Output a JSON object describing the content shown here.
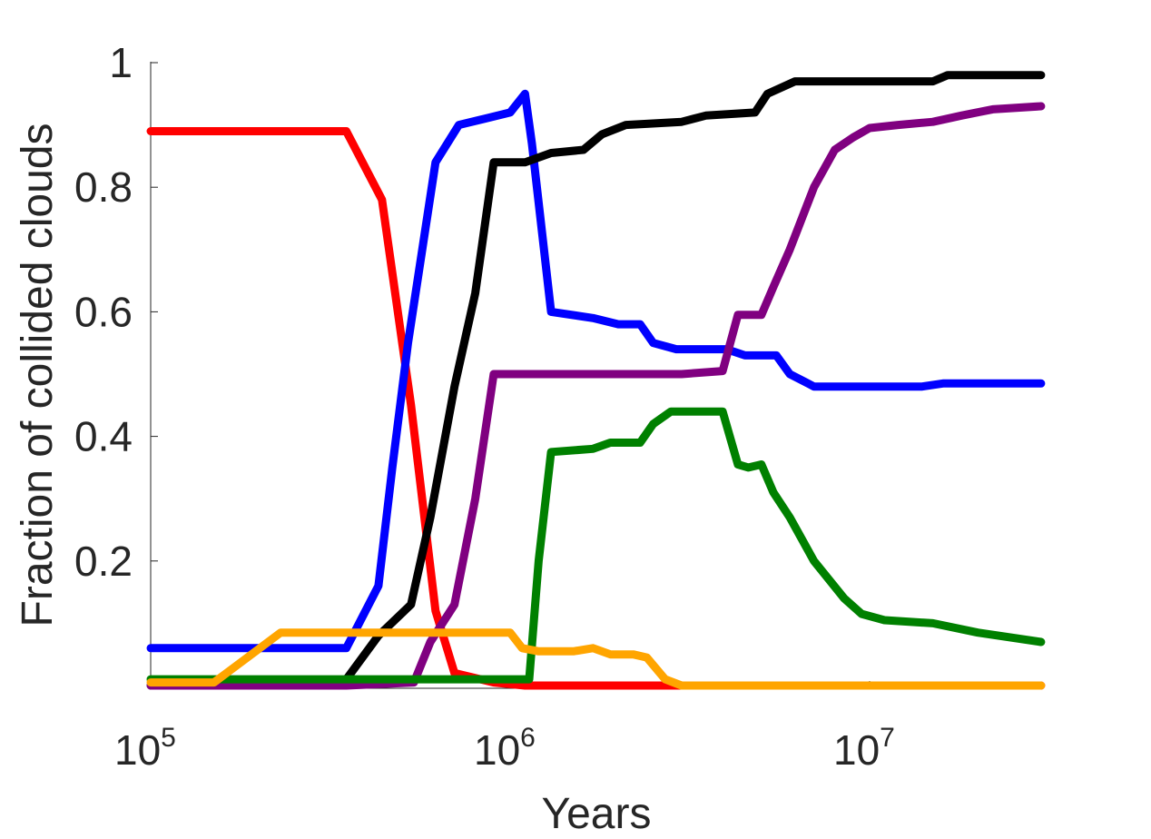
{
  "chart_data": {
    "type": "line",
    "xlabel": "Years",
    "ylabel": "Fraction of collided clouds",
    "x_scale": "log",
    "xlim": [
      100000,
      30000000
    ],
    "ylim": [
      0,
      1
    ],
    "x_ticks": [
      {
        "base": "10",
        "exp": "5",
        "value": 100000
      },
      {
        "base": "10",
        "exp": "6",
        "value": 1000000
      },
      {
        "base": "10",
        "exp": "7",
        "value": 10000000
      }
    ],
    "y_ticks": [
      {
        "label": "0.2",
        "value": 0.2
      },
      {
        "label": "0.4",
        "value": 0.4
      },
      {
        "label": "0.6",
        "value": 0.6
      },
      {
        "label": "0.8",
        "value": 0.8
      },
      {
        "label": "1",
        "value": 1
      }
    ],
    "grid": false,
    "series": [
      {
        "color": "#ff0000",
        "points": [
          [
            100000,
            0.89
          ],
          [
            350000,
            0.89
          ],
          [
            440000,
            0.78
          ],
          [
            530000,
            0.45
          ],
          [
            620000,
            0.12
          ],
          [
            700000,
            0.02
          ],
          [
            900000,
            0.005
          ],
          [
            1100000,
            0.0
          ],
          [
            30000000,
            0.0
          ]
        ]
      },
      {
        "color": "#0000ff",
        "points": [
          [
            100000,
            0.06
          ],
          [
            350000,
            0.06
          ],
          [
            430000,
            0.16
          ],
          [
            470000,
            0.35
          ],
          [
            520000,
            0.55
          ],
          [
            620000,
            0.84
          ],
          [
            720000,
            0.9
          ],
          [
            850000,
            0.91
          ],
          [
            1000000,
            0.92
          ],
          [
            1100000,
            0.95
          ],
          [
            1150000,
            0.87
          ],
          [
            1300000,
            0.6
          ],
          [
            1700000,
            0.59
          ],
          [
            2000000,
            0.58
          ],
          [
            2300000,
            0.58
          ],
          [
            2500000,
            0.55
          ],
          [
            2900000,
            0.54
          ],
          [
            4000000,
            0.54
          ],
          [
            4500000,
            0.53
          ],
          [
            5500000,
            0.53
          ],
          [
            6000000,
            0.5
          ],
          [
            7000000,
            0.48
          ],
          [
            14000000,
            0.48
          ],
          [
            16000000,
            0.485
          ],
          [
            30000000,
            0.485
          ]
        ]
      },
      {
        "color": "#000000",
        "points": [
          [
            100000,
            0.0
          ],
          [
            340000,
            0.0
          ],
          [
            430000,
            0.08
          ],
          [
            530000,
            0.13
          ],
          [
            600000,
            0.27
          ],
          [
            700000,
            0.48
          ],
          [
            800000,
            0.63
          ],
          [
            900000,
            0.84
          ],
          [
            1100000,
            0.84
          ],
          [
            1300000,
            0.855
          ],
          [
            1600000,
            0.86
          ],
          [
            1800000,
            0.885
          ],
          [
            2100000,
            0.9
          ],
          [
            3000000,
            0.905
          ],
          [
            3500000,
            0.915
          ],
          [
            4800000,
            0.92
          ],
          [
            5200000,
            0.95
          ],
          [
            6200000,
            0.97
          ],
          [
            15000000,
            0.97
          ],
          [
            16500000,
            0.98
          ],
          [
            30000000,
            0.98
          ]
        ]
      },
      {
        "color": "#800080",
        "points": [
          [
            100000,
            0.0
          ],
          [
            350000,
            0.0
          ],
          [
            540000,
            0.005
          ],
          [
            600000,
            0.07
          ],
          [
            700000,
            0.13
          ],
          [
            800000,
            0.3
          ],
          [
            900000,
            0.5
          ],
          [
            1100000,
            0.5
          ],
          [
            2000000,
            0.5
          ],
          [
            3000000,
            0.5
          ],
          [
            3900000,
            0.505
          ],
          [
            4300000,
            0.595
          ],
          [
            5000000,
            0.595
          ],
          [
            5400000,
            0.64
          ],
          [
            6000000,
            0.7
          ],
          [
            7000000,
            0.8
          ],
          [
            8000000,
            0.86
          ],
          [
            9000000,
            0.88
          ],
          [
            10000000,
            0.895
          ],
          [
            12000000,
            0.9
          ],
          [
            15000000,
            0.905
          ],
          [
            18000000,
            0.915
          ],
          [
            22000000,
            0.925
          ],
          [
            30000000,
            0.93
          ]
        ]
      },
      {
        "color": "#008000",
        "points": [
          [
            100000,
            0.01
          ],
          [
            1000000,
            0.01
          ],
          [
            1130000,
            0.01
          ],
          [
            1200000,
            0.2
          ],
          [
            1300000,
            0.375
          ],
          [
            1700000,
            0.38
          ],
          [
            1900000,
            0.39
          ],
          [
            2300000,
            0.39
          ],
          [
            2500000,
            0.42
          ],
          [
            2800000,
            0.44
          ],
          [
            3900000,
            0.44
          ],
          [
            4300000,
            0.355
          ],
          [
            4600000,
            0.35
          ],
          [
            5000000,
            0.355
          ],
          [
            5400000,
            0.31
          ],
          [
            6000000,
            0.27
          ],
          [
            7000000,
            0.2
          ],
          [
            8500000,
            0.14
          ],
          [
            9500000,
            0.115
          ],
          [
            11000000,
            0.105
          ],
          [
            15000000,
            0.1
          ],
          [
            20000000,
            0.085
          ],
          [
            30000000,
            0.07
          ]
        ]
      },
      {
        "color": "#ffa500",
        "points": [
          [
            100000,
            0.005
          ],
          [
            150000,
            0.005
          ],
          [
            230000,
            0.085
          ],
          [
            1000000,
            0.085
          ],
          [
            1080000,
            0.06
          ],
          [
            1200000,
            0.055
          ],
          [
            1500000,
            0.055
          ],
          [
            1700000,
            0.06
          ],
          [
            1900000,
            0.05
          ],
          [
            2200000,
            0.05
          ],
          [
            2400000,
            0.045
          ],
          [
            2700000,
            0.01
          ],
          [
            3000000,
            0.0
          ],
          [
            30000000,
            0.0
          ]
        ]
      }
    ]
  }
}
